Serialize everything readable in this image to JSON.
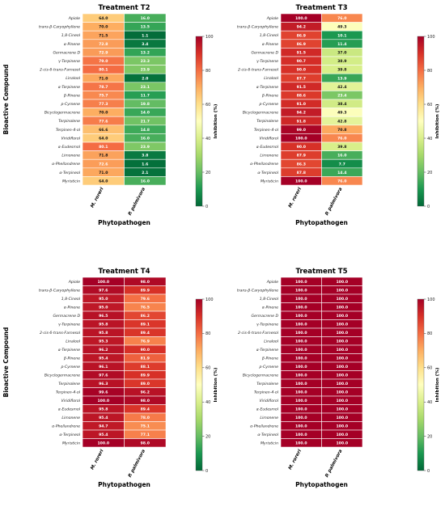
{
  "chart_data": [
    {
      "type": "heatmap",
      "title": "Treatment T2",
      "xlabel": "Phytopathogen",
      "ylabel": "Bioactive Compound",
      "x": [
        "M. roreri",
        "P. palmivora"
      ],
      "y": [
        "Apiole",
        "trans-β-Caryophyllene",
        "1,8-Cineol",
        "α-Pinene",
        "Germacrene D",
        "γ-Terpinene",
        "2-cis-6-trans-Farnesol",
        "Linalool",
        "α-Terpinene",
        "β-Pinene",
        "p-Cymene",
        "Bicyclogermacrene",
        "Terpinolene",
        "Terpinen-4-ol",
        "Viridiflorol",
        "α-Eudesmol",
        "Limonene",
        "α-Phellandrene",
        "α-Terpineol",
        "Myristicin"
      ],
      "values": [
        [
          64.0,
          16.0
        ],
        [
          70.0,
          13.5
        ],
        [
          71.5,
          1.1
        ],
        [
          72.8,
          3.4
        ],
        [
          72.9,
          13.2
        ],
        [
          79.0,
          23.3
        ],
        [
          80.1,
          23.9
        ],
        [
          71.0,
          2.0
        ],
        [
          78.7,
          23.1
        ],
        [
          75.7,
          11.7
        ],
        [
          77.3,
          19.8
        ],
        [
          70.0,
          14.0
        ],
        [
          77.6,
          21.7
        ],
        [
          66.6,
          14.8
        ],
        [
          64.0,
          16.0
        ],
        [
          80.1,
          23.9
        ],
        [
          71.8,
          3.8
        ],
        [
          72.6,
          1.6
        ],
        [
          71.0,
          2.1
        ],
        [
          64.0,
          16.0
        ]
      ],
      "colorbar": {
        "label": "Inhibition (%)",
        "range": [
          0,
          100
        ],
        "ticks": [
          0,
          20,
          40,
          60,
          80,
          100
        ]
      }
    },
    {
      "type": "heatmap",
      "title": "Treatment T3",
      "xlabel": "Phytopathogen",
      "ylabel": "",
      "x": [
        "M. roreri",
        "P. palmivora"
      ],
      "y": [
        "Apiole",
        "trans-β-Caryophyllene",
        "1,8-Cineol",
        "α-Pinene",
        "Germacrene D",
        "γ-Terpinene",
        "2-cis-6-trans-Farnesol",
        "Linalool",
        "α-Terpinene",
        "β-Pinene",
        "p-Cymene",
        "Bicyclogermacrene",
        "Terpinolene",
        "Terpinen-4-ol",
        "Viridiflorol",
        "α-Eudesmol",
        "Limonene",
        "α-Phellandrene",
        "α-Terpineol",
        "Myristicin"
      ],
      "values": [
        [
          100.0,
          76.0
        ],
        [
          94.2,
          49.3
        ],
        [
          86.9,
          10.1
        ],
        [
          86.9,
          11.4
        ],
        [
          91.5,
          37.0
        ],
        [
          90.7,
          38.9
        ],
        [
          90.0,
          39.8
        ],
        [
          87.7,
          13.9
        ],
        [
          91.5,
          42.4
        ],
        [
          88.6,
          23.4
        ],
        [
          91.0,
          38.4
        ],
        [
          94.2,
          49.3
        ],
        [
          91.8,
          42.8
        ],
        [
          99.0,
          70.8
        ],
        [
          100.0,
          76.0
        ],
        [
          90.0,
          39.8
        ],
        [
          87.9,
          16.0
        ],
        [
          86.3,
          7.7
        ],
        [
          87.8,
          14.4
        ],
        [
          100.0,
          76.0
        ]
      ],
      "colorbar": {
        "label": "Inhibition (%)",
        "range": [
          0,
          100
        ],
        "ticks": [
          0,
          20,
          40,
          60,
          80,
          100
        ]
      }
    },
    {
      "type": "heatmap",
      "title": "Treatment T4",
      "xlabel": "Phytopathogen",
      "ylabel": "Bioactive Compound",
      "x": [
        "M. roreri",
        "P. palmivora"
      ],
      "y": [
        "Apiole",
        "trans-β-Caryophyllene",
        "1,8-Cineol",
        "α-Pinene",
        "Germacrene D",
        "γ-Terpinene",
        "2-cis-6-trans-Farnesol",
        "Linalool",
        "α-Terpinene",
        "β-Pinene",
        "p-Cymene",
        "Bicyclogermacrene",
        "Terpinolene",
        "Terpinen-4-ol",
        "Viridiflorol",
        "α-Eudesmol",
        "Limonene",
        "α-Phellandrene",
        "α-Terpineol",
        "Myristicin"
      ],
      "values": [
        [
          100.0,
          98.0
        ],
        [
          97.6,
          89.9
        ],
        [
          95.0,
          79.6
        ],
        [
          95.0,
          76.5
        ],
        [
          96.5,
          86.2
        ],
        [
          95.8,
          89.1
        ],
        [
          95.8,
          89.4
        ],
        [
          95.3,
          76.9
        ],
        [
          96.2,
          90.0
        ],
        [
          95.4,
          81.9
        ],
        [
          96.1,
          88.1
        ],
        [
          97.6,
          89.9
        ],
        [
          96.3,
          89.0
        ],
        [
          99.6,
          96.2
        ],
        [
          100.0,
          98.0
        ],
        [
          95.8,
          89.4
        ],
        [
          95.4,
          78.0
        ],
        [
          94.7,
          75.1
        ],
        [
          95.4,
          77.1
        ],
        [
          100.0,
          98.0
        ]
      ],
      "colorbar": {
        "label": "Inhibition (%)",
        "range": [
          0,
          100
        ],
        "ticks": [
          0,
          20,
          40,
          60,
          80,
          100
        ]
      }
    },
    {
      "type": "heatmap",
      "title": "Treatment T5",
      "xlabel": "Phytopathogen",
      "ylabel": "",
      "x": [
        "M. roreri",
        "P. palmivora"
      ],
      "y": [
        "Apiole",
        "trans-β-Caryophyllene",
        "1,8-Cineol",
        "α-Pinene",
        "Germacrene D",
        "γ-Terpinene",
        "2-cis-6-trans-Farnesol",
        "Linalool",
        "α-Terpinene",
        "β-Pinene",
        "p-Cymene",
        "Bicyclogermacrene",
        "Terpinolene",
        "Terpinen-4-ol",
        "Viridiflorol",
        "α-Eudesmol",
        "Limonene",
        "α-Phellandrene",
        "α-Terpineol",
        "Myristicin"
      ],
      "values": [
        [
          100.0,
          100.0
        ],
        [
          100.0,
          100.0
        ],
        [
          100.0,
          100.0
        ],
        [
          100.0,
          100.0
        ],
        [
          100.0,
          100.0
        ],
        [
          100.0,
          100.0
        ],
        [
          100.0,
          100.0
        ],
        [
          100.0,
          100.0
        ],
        [
          100.0,
          100.0
        ],
        [
          100.0,
          100.0
        ],
        [
          100.0,
          100.0
        ],
        [
          100.0,
          100.0
        ],
        [
          100.0,
          100.0
        ],
        [
          100.0,
          100.0
        ],
        [
          100.0,
          100.0
        ],
        [
          100.0,
          100.0
        ],
        [
          100.0,
          100.0
        ],
        [
          100.0,
          100.0
        ],
        [
          100.0,
          100.0
        ],
        [
          100.0,
          100.0
        ]
      ],
      "colorbar": {
        "label": "Inhibition (%)",
        "range": [
          0,
          100
        ],
        "ticks": [
          0,
          20,
          40,
          60,
          80,
          100
        ]
      }
    }
  ]
}
